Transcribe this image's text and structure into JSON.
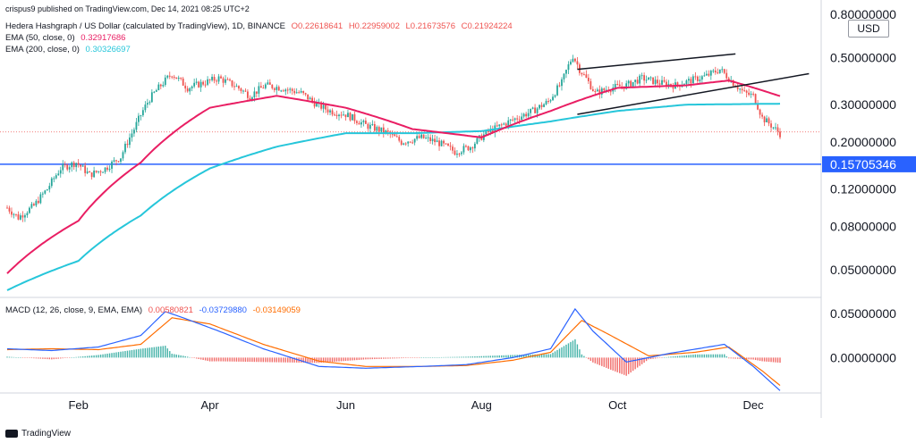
{
  "header": {
    "published": "crispus9 published on TradingView.com, Dec 14, 2021 08:25 UTC+2",
    "symbol": "Hedera Hashgraph / US Dollar (calculated by TradingView), 1D, BINANCE",
    "ohlc": {
      "o": "O0.22618641",
      "h": "H0.22959002",
      "l": "L0.21673576",
      "c": "C0.21924224"
    },
    "ema50_label": "EMA (50, close, 0)",
    "ema50_value": "0.32917686",
    "ema200_label": "EMA (200, close, 0)",
    "ema200_value": "0.30326697",
    "macd_label": "MACD (12, 26, close, 9, EMA, EMA)",
    "macd_hist": "0.00580821",
    "macd_line": "-0.03729880",
    "macd_signal": "-0.03149059",
    "currency": "USD",
    "brand": "TradingView"
  },
  "colors": {
    "up": "#26a69a",
    "down": "#ef5350",
    "ema50": "#e91e63",
    "ema200": "#26c6da",
    "macd": "#2962ff",
    "signal": "#ff6d00",
    "hline": "#2962ff",
    "text": "#131722",
    "grid": "#e0e3eb"
  },
  "chart_data": [
    {
      "type": "candlestick",
      "scale": "log",
      "ylim": [
        0.037,
        0.8
      ],
      "y_ticks": [
        "0.80000000",
        "0.50000000",
        "0.30000000",
        "0.20000000",
        "0.12000000",
        "0.08000000",
        "0.05000000"
      ],
      "y_tick_values": [
        0.8,
        0.5,
        0.3,
        0.2,
        0.12,
        0.08,
        0.05
      ],
      "x_ticks": [
        "Feb",
        "Apr",
        "Jun",
        "Aug",
        "Oct",
        "Dec"
      ],
      "x_tick_dates": [
        "2021-02-01",
        "2021-04-01",
        "2021-06-01",
        "2021-08-01",
        "2021-10-01",
        "2021-12-01"
      ],
      "x_range": [
        "2020-12-31",
        "2021-12-13"
      ],
      "horizontal_line": {
        "value": 0.15705346,
        "label": "0.15705346"
      },
      "last_price": 0.21924224,
      "close_anchors": [
        [
          "2020-12-31",
          0.098
        ],
        [
          "2021-01-05",
          0.088
        ],
        [
          "2021-01-12",
          0.1
        ],
        [
          "2021-01-18",
          0.12
        ],
        [
          "2021-01-24",
          0.15
        ],
        [
          "2021-01-31",
          0.16
        ],
        [
          "2021-02-06",
          0.14
        ],
        [
          "2021-02-13",
          0.15
        ],
        [
          "2021-02-20",
          0.17
        ],
        [
          "2021-02-26",
          0.23
        ],
        [
          "2021-03-05",
          0.32
        ],
        [
          "2021-03-10",
          0.37
        ],
        [
          "2021-03-15",
          0.42
        ],
        [
          "2021-03-22",
          0.36
        ],
        [
          "2021-03-29",
          0.38
        ],
        [
          "2021-04-05",
          0.4
        ],
        [
          "2021-04-12",
          0.37
        ],
        [
          "2021-04-19",
          0.33
        ],
        [
          "2021-04-26",
          0.37
        ],
        [
          "2021-05-03",
          0.36
        ],
        [
          "2021-05-12",
          0.34
        ],
        [
          "2021-05-19",
          0.3
        ],
        [
          "2021-05-25",
          0.28
        ],
        [
          "2021-06-01",
          0.27
        ],
        [
          "2021-06-10",
          0.24
        ],
        [
          "2021-06-20",
          0.22
        ],
        [
          "2021-06-26",
          0.2
        ],
        [
          "2021-07-05",
          0.21
        ],
        [
          "2021-07-12",
          0.2
        ],
        [
          "2021-07-20",
          0.18
        ],
        [
          "2021-07-27",
          0.19
        ],
        [
          "2021-08-03",
          0.22
        ],
        [
          "2021-08-10",
          0.24
        ],
        [
          "2021-08-17",
          0.26
        ],
        [
          "2021-08-24",
          0.28
        ],
        [
          "2021-08-31",
          0.31
        ],
        [
          "2021-09-06",
          0.38
        ],
        [
          "2021-09-11",
          0.51
        ],
        [
          "2021-09-14",
          0.44
        ],
        [
          "2021-09-21",
          0.34
        ],
        [
          "2021-09-28",
          0.36
        ],
        [
          "2021-10-05",
          0.37
        ],
        [
          "2021-10-12",
          0.4
        ],
        [
          "2021-10-20",
          0.38
        ],
        [
          "2021-10-27",
          0.37
        ],
        [
          "2021-11-03",
          0.39
        ],
        [
          "2021-11-10",
          0.41
        ],
        [
          "2021-11-16",
          0.44
        ],
        [
          "2021-11-22",
          0.38
        ],
        [
          "2021-11-27",
          0.34
        ],
        [
          "2021-12-01",
          0.33
        ],
        [
          "2021-12-05",
          0.26
        ],
        [
          "2021-12-09",
          0.24
        ],
        [
          "2021-12-13",
          0.219
        ]
      ],
      "ema50_anchors": [
        [
          "2020-12-31",
          0.048
        ],
        [
          "2021-02-01",
          0.085
        ],
        [
          "2021-03-01",
          0.16
        ],
        [
          "2021-04-01",
          0.29
        ],
        [
          "2021-05-01",
          0.33
        ],
        [
          "2021-06-01",
          0.29
        ],
        [
          "2021-07-01",
          0.23
        ],
        [
          "2021-08-01",
          0.21
        ],
        [
          "2021-09-01",
          0.28
        ],
        [
          "2021-10-01",
          0.36
        ],
        [
          "2021-11-01",
          0.37
        ],
        [
          "2021-11-20",
          0.39
        ],
        [
          "2021-12-13",
          0.329
        ]
      ],
      "ema200_anchors": [
        [
          "2020-12-31",
          0.04
        ],
        [
          "2021-02-01",
          0.055
        ],
        [
          "2021-03-01",
          0.09
        ],
        [
          "2021-04-01",
          0.15
        ],
        [
          "2021-05-01",
          0.19
        ],
        [
          "2021-06-01",
          0.22
        ],
        [
          "2021-07-01",
          0.22
        ],
        [
          "2021-08-01",
          0.225
        ],
        [
          "2021-09-01",
          0.25
        ],
        [
          "2021-10-01",
          0.28
        ],
        [
          "2021-11-01",
          0.3
        ],
        [
          "2021-12-13",
          0.303
        ]
      ],
      "channel_lines": [
        {
          "from": [
            "2021-09-13",
            0.44
          ],
          "to": [
            "2021-11-23",
            0.52
          ]
        },
        {
          "from": [
            "2021-09-13",
            0.27
          ],
          "to": [
            "2021-12-26",
            0.42
          ]
        }
      ]
    },
    {
      "type": "macd",
      "ylim": [
        -0.04,
        0.065
      ],
      "y_ticks": [
        "0.05000000",
        "0.00000000"
      ],
      "y_tick_values": [
        0.05,
        0.0
      ],
      "macd_anchors": [
        [
          "2020-12-31",
          0.01
        ],
        [
          "2021-01-20",
          0.008
        ],
        [
          "2021-02-10",
          0.012
        ],
        [
          "2021-03-01",
          0.025
        ],
        [
          "2021-03-12",
          0.052
        ],
        [
          "2021-03-20",
          0.045
        ],
        [
          "2021-04-05",
          0.03
        ],
        [
          "2021-04-25",
          0.01
        ],
        [
          "2021-05-20",
          -0.01
        ],
        [
          "2021-06-10",
          -0.012
        ],
        [
          "2021-07-05",
          -0.01
        ],
        [
          "2021-07-25",
          -0.008
        ],
        [
          "2021-08-15",
          0.0
        ],
        [
          "2021-09-01",
          0.01
        ],
        [
          "2021-09-12",
          0.055
        ],
        [
          "2021-09-20",
          0.03
        ],
        [
          "2021-10-05",
          -0.005
        ],
        [
          "2021-10-25",
          0.005
        ],
        [
          "2021-11-18",
          0.015
        ],
        [
          "2021-12-01",
          -0.01
        ],
        [
          "2021-12-13",
          -0.0373
        ]
      ],
      "signal_anchors": [
        [
          "2020-12-31",
          0.009
        ],
        [
          "2021-01-20",
          0.01
        ],
        [
          "2021-02-10",
          0.009
        ],
        [
          "2021-03-01",
          0.015
        ],
        [
          "2021-03-15",
          0.045
        ],
        [
          "2021-04-01",
          0.038
        ],
        [
          "2021-04-25",
          0.015
        ],
        [
          "2021-05-20",
          -0.004
        ],
        [
          "2021-06-10",
          -0.01
        ],
        [
          "2021-07-05",
          -0.01
        ],
        [
          "2021-07-25",
          -0.009
        ],
        [
          "2021-08-15",
          -0.003
        ],
        [
          "2021-09-01",
          0.006
        ],
        [
          "2021-09-15",
          0.042
        ],
        [
          "2021-09-28",
          0.025
        ],
        [
          "2021-10-15",
          0.002
        ],
        [
          "2021-11-05",
          0.006
        ],
        [
          "2021-11-20",
          0.012
        ],
        [
          "2021-12-05",
          -0.015
        ],
        [
          "2021-12-13",
          -0.0315
        ]
      ]
    }
  ]
}
